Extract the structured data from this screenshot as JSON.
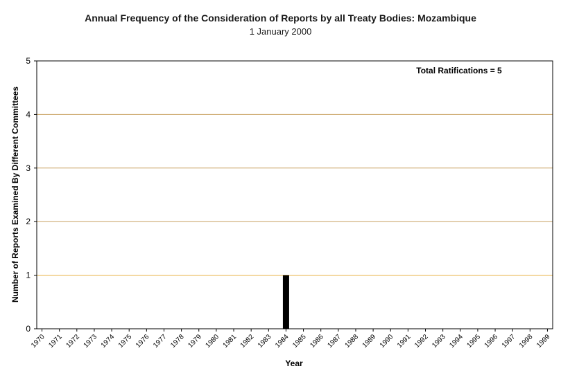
{
  "chart_data": {
    "type": "bar",
    "title": "Annual Frequency of the Consideration of Reports by all Treaty Bodies: Mozambique",
    "subtitle": "1 January 2000",
    "xlabel": "Year",
    "ylabel": "Number of Reports Examined By Different Committees",
    "ylim": [
      0,
      5
    ],
    "yticks": [
      0,
      1,
      2,
      3,
      4,
      5
    ],
    "grid": true,
    "annotation": "Total Ratifications = 5",
    "categories": [
      "1970",
      "1971",
      "1972",
      "1973",
      "1974",
      "1975",
      "1976",
      "1977",
      "1978",
      "1979",
      "1980",
      "1981",
      "1982",
      "1983",
      "1984",
      "1985",
      "1986",
      "1987",
      "1988",
      "1989",
      "1990",
      "1991",
      "1992",
      "1993",
      "1994",
      "1995",
      "1996",
      "1997",
      "1998",
      "1999"
    ],
    "values": [
      0,
      0,
      0,
      0,
      0,
      0,
      0,
      0,
      0,
      0,
      0,
      0,
      0,
      0,
      1,
      0,
      0,
      0,
      0,
      0,
      0,
      0,
      0,
      0,
      0,
      0,
      0,
      0,
      0,
      0
    ],
    "colors": {
      "bar": "#000000",
      "grid": "#c8a060",
      "axis": "#000000",
      "highlight_grid": "#e8b040"
    }
  }
}
